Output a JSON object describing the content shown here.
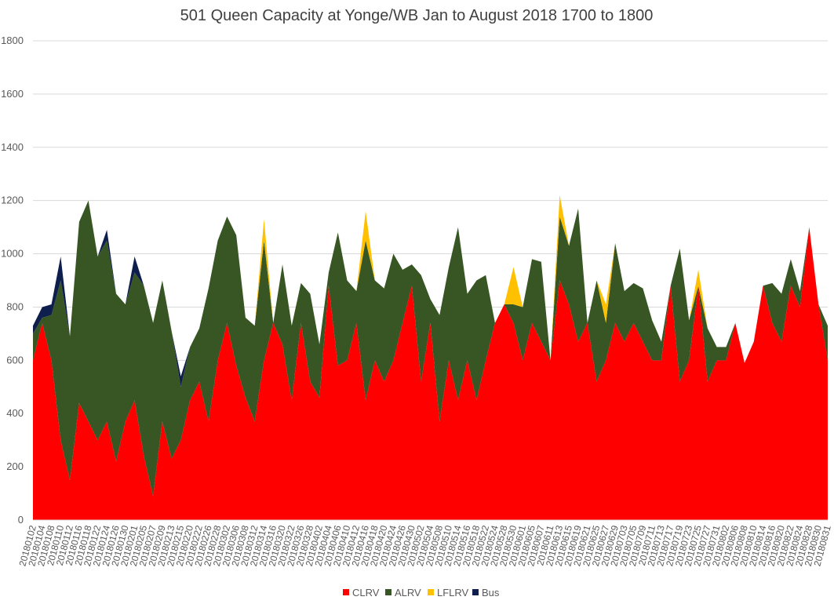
{
  "chart_data": {
    "type": "area",
    "stacked": true,
    "title": "501 Queen Capacity at Yonge/WB Jan to August 2018 1700 to 1800",
    "xlabel": "",
    "ylabel": "",
    "ylim": [
      0,
      1800
    ],
    "yticks": [
      0,
      200,
      400,
      600,
      800,
      1000,
      1200,
      1400,
      1600,
      1800
    ],
    "grid": true,
    "legend_position": "bottom",
    "x": [
      "20180102",
      "20180104",
      "20180108",
      "20180110",
      "20180112",
      "20180116",
      "20180118",
      "20180122",
      "20180124",
      "20180126",
      "20180130",
      "20180201",
      "20180205",
      "20180207",
      "20180209",
      "20180213",
      "20180215",
      "20180220",
      "20180222",
      "20180226",
      "20180228",
      "20180302",
      "20180306",
      "20180308",
      "20180312",
      "20180314",
      "20180316",
      "20180320",
      "20180322",
      "20180326",
      "20180328",
      "20180402",
      "20180404",
      "20180406",
      "20180410",
      "20180412",
      "20180416",
      "20180418",
      "20180420",
      "20180424",
      "20180426",
      "20180430",
      "20180502",
      "20180504",
      "20180508",
      "20180510",
      "20180514",
      "20180516",
      "20180518",
      "20180522",
      "20180524",
      "20180528",
      "20180530",
      "20180601",
      "20180605",
      "20180607",
      "20180611",
      "20180613",
      "20180615",
      "20180619",
      "20180621",
      "20180625",
      "20180627",
      "20180629",
      "20180703",
      "20180705",
      "20180709",
      "20180711",
      "20180713",
      "20180717",
      "20180719",
      "20180723",
      "20180725",
      "20180727",
      "20180731",
      "20180802",
      "20180806",
      "20180808",
      "20180810",
      "20180814",
      "20180816",
      "20180820",
      "20180822",
      "20180824",
      "20180828",
      "20180830",
      "20180831"
    ],
    "xtick_labels": [
      "20180102",
      "20180104",
      "20180108",
      "20180110",
      "20180112",
      "20180116",
      "20180118",
      "20180122",
      "20180124",
      "20180126",
      "20180130",
      "20180201",
      "20180205",
      "20180207",
      "20180209",
      "20180213",
      "20180215",
      "20180220",
      "20180222",
      "20180226",
      "20180228",
      "20180302",
      "20180306",
      "20180308",
      "20180312",
      "20180314",
      "20180316",
      "20180320",
      "20180322",
      "20180326",
      "20180328",
      "20180402",
      "20180404",
      "20180406",
      "20180410",
      "20180412",
      "20180416",
      "20180418",
      "20180420",
      "20180424",
      "20180426",
      "20180430",
      "20180502",
      "20180504",
      "20180508",
      "20180510",
      "20180514",
      "20180516",
      "20180518",
      "20180522",
      "20180524",
      "20180528",
      "20180530",
      "20180601",
      "20180605",
      "20180607",
      "20180611",
      "20180613",
      "20180615",
      "20180619",
      "20180621",
      "20180625",
      "20180627",
      "20180629",
      "20180703",
      "20180705",
      "20180709",
      "20180711",
      "20180713",
      "20180717",
      "20180719",
      "20180723",
      "20180725",
      "20180727",
      "20180731",
      "20180802",
      "20180806",
      "20180808",
      "20180810",
      "20180814",
      "20180816",
      "20180820",
      "20180822",
      "20180824",
      "20180828",
      "20180830",
      "20180831"
    ],
    "series": [
      {
        "name": "CLRV",
        "color": "#ff0000",
        "values": [
          600,
          740,
          600,
          300,
          150,
          440,
          370,
          300,
          370,
          220,
          370,
          450,
          240,
          90,
          370,
          230,
          300,
          450,
          520,
          370,
          600,
          740,
          580,
          460,
          370,
          600,
          740,
          660,
          450,
          740,
          520,
          460,
          880,
          580,
          600,
          740,
          450,
          600,
          520,
          600,
          740,
          880,
          520,
          740,
          370,
          600,
          450,
          600,
          450,
          600,
          740,
          810,
          740,
          600,
          740,
          670,
          600,
          900,
          810,
          670,
          740,
          520,
          600,
          740,
          670,
          740,
          670,
          600,
          600,
          880,
          520,
          600,
          880,
          520,
          600,
          600,
          740,
          590,
          670,
          880,
          740,
          670,
          880,
          800,
          1100,
          810,
          600
        ]
      },
      {
        "name": "ALRV",
        "color": "#375623",
        "values": [
          100,
          20,
          170,
          600,
          540,
          680,
          830,
          690,
          680,
          630,
          440,
          480,
          640,
          650,
          530,
          480,
          200,
          200,
          200,
          500,
          450,
          400,
          490,
          300,
          360,
          450,
          0,
          300,
          280,
          150,
          330,
          200,
          50,
          500,
          300,
          120,
          600,
          300,
          350,
          400,
          200,
          80,
          400,
          90,
          400,
          350,
          650,
          250,
          450,
          320,
          0,
          0,
          70,
          200,
          240,
          300,
          0,
          240,
          220,
          500,
          0,
          380,
          140,
          300,
          190,
          150,
          200,
          150,
          70,
          0,
          500,
          150,
          0,
          200,
          50,
          50,
          0,
          0,
          0,
          0,
          150,
          180,
          100,
          60,
          0,
          0,
          130
        ]
      },
      {
        "name": "LFLRV",
        "color": "#ffc000",
        "values": [
          0,
          0,
          0,
          0,
          0,
          0,
          0,
          0,
          0,
          0,
          0,
          0,
          0,
          0,
          0,
          0,
          0,
          0,
          0,
          0,
          0,
          0,
          0,
          0,
          0,
          80,
          0,
          0,
          0,
          0,
          0,
          0,
          0,
          0,
          0,
          0,
          110,
          0,
          0,
          0,
          0,
          0,
          0,
          0,
          0,
          0,
          0,
          0,
          0,
          0,
          0,
          0,
          140,
          0,
          0,
          0,
          0,
          80,
          0,
          0,
          0,
          0,
          70,
          0,
          0,
          0,
          0,
          0,
          0,
          0,
          0,
          0,
          60,
          0,
          0,
          0,
          0,
          0,
          0,
          0,
          0,
          0,
          0,
          0,
          0,
          0,
          0
        ]
      },
      {
        "name": "Bus",
        "color": "#0e1f4d",
        "values": [
          30,
          40,
          40,
          90,
          0,
          0,
          0,
          0,
          40,
          0,
          0,
          60,
          0,
          0,
          0,
          0,
          40,
          0,
          0,
          0,
          0,
          0,
          0,
          0,
          0,
          0,
          0,
          0,
          0,
          0,
          0,
          0,
          0,
          0,
          0,
          0,
          0,
          0,
          0,
          0,
          0,
          0,
          0,
          0,
          0,
          0,
          0,
          0,
          0,
          0,
          0,
          0,
          0,
          0,
          0,
          0,
          0,
          0,
          0,
          0,
          0,
          0,
          0,
          0,
          0,
          0,
          0,
          0,
          0,
          0,
          0,
          0,
          0,
          0,
          0,
          0,
          0,
          0,
          0,
          0,
          0,
          0,
          0,
          0,
          0,
          0,
          0
        ]
      }
    ]
  }
}
